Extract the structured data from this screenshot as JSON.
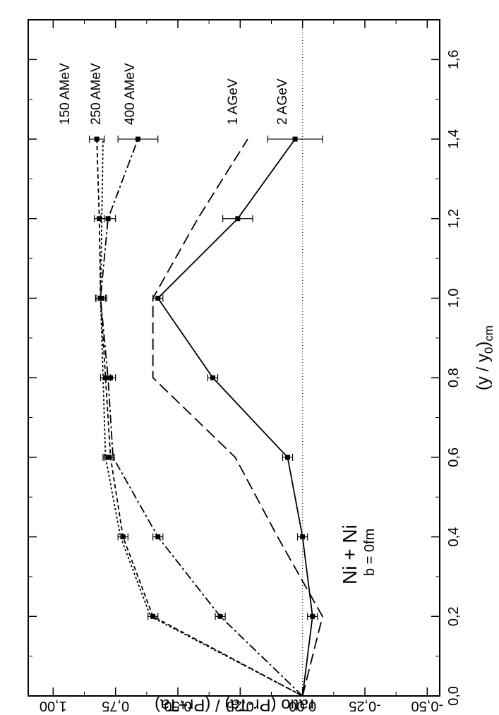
{
  "chart_data": {
    "type": "line",
    "xlabel": "(y / y",
    "xlabel_sub": "0",
    "xlabel_end": ")",
    "xlabel_sub2": "cm",
    "ylabel": "ratio   (Pr-Ta) / (Pr+Ta)",
    "xlim": [
      0.0,
      1.7
    ],
    "ylim": [
      -0.55,
      1.1
    ],
    "x_ticks": [
      {
        "value": 0.0,
        "label": "0,0"
      },
      {
        "value": 0.2,
        "label": "0,2"
      },
      {
        "value": 0.4,
        "label": "0,4"
      },
      {
        "value": 0.6,
        "label": "0,6"
      },
      {
        "value": 0.8,
        "label": "0,8"
      },
      {
        "value": 1.0,
        "label": "1,0"
      },
      {
        "value": 1.2,
        "label": "1,2"
      },
      {
        "value": 1.4,
        "label": "1,4"
      },
      {
        "value": 1.6,
        "label": "1,6"
      }
    ],
    "y_ticks": [
      {
        "value": 1.0,
        "label": "1,00"
      },
      {
        "value": 0.75,
        "label": "0,75"
      },
      {
        "value": 0.5,
        "label": "0,50"
      },
      {
        "value": 0.25,
        "label": "0,25"
      },
      {
        "value": 0.0,
        "label": "0,00"
      },
      {
        "value": -0.25,
        "label": "-0,25"
      },
      {
        "value": -0.5,
        "label": "-0,50"
      }
    ],
    "reference_line": 0.0,
    "annotation": {
      "main": "Ni + Ni",
      "sub": "b = 0fm"
    },
    "series": [
      {
        "name": "150 AMeV",
        "style": "short-dash",
        "line": [
          [
            0.0,
            0.0
          ],
          [
            0.2,
            0.6
          ],
          [
            0.4,
            0.72
          ],
          [
            0.6,
            0.77
          ],
          [
            0.8,
            0.79
          ],
          [
            1.0,
            0.81
          ],
          [
            1.2,
            0.815
          ],
          [
            1.4,
            0.825
          ]
        ],
        "points": [
          {
            "x": 0.2,
            "y": 0.6,
            "err": 0.02
          },
          {
            "x": 0.4,
            "y": 0.72,
            "err": 0.02
          },
          {
            "x": 0.6,
            "y": 0.775,
            "err": 0.02
          },
          {
            "x": 0.8,
            "y": 0.79,
            "err": 0.02
          },
          {
            "x": 1.0,
            "y": 0.81,
            "err": 0.02
          },
          {
            "x": 1.2,
            "y": 0.815,
            "err": 0.02
          },
          {
            "x": 1.4,
            "y": 0.825,
            "err": 0.03
          }
        ]
      },
      {
        "name": "250 AMeV",
        "style": "dotted",
        "line": [
          [
            0.0,
            0.0
          ],
          [
            0.2,
            0.61
          ],
          [
            0.4,
            0.73
          ],
          [
            0.6,
            0.79
          ],
          [
            0.8,
            0.8
          ],
          [
            1.0,
            0.81
          ],
          [
            1.2,
            0.805
          ],
          [
            1.4,
            0.8
          ]
        ],
        "points": [
          {
            "x": 0.6,
            "y": 0.78,
            "err": 0.02
          },
          {
            "x": 0.8,
            "y": 0.77,
            "err": 0.02
          },
          {
            "x": 1.0,
            "y": 0.805,
            "err": 0.02
          }
        ]
      },
      {
        "name": "400 AMeV",
        "style": "dash-dot",
        "line": [
          [
            0.0,
            0.0
          ],
          [
            0.2,
            0.33
          ],
          [
            0.4,
            0.58
          ],
          [
            0.6,
            0.76
          ],
          [
            0.8,
            0.78
          ],
          [
            1.0,
            0.81
          ],
          [
            1.2,
            0.78
          ],
          [
            1.4,
            0.66
          ]
        ],
        "points": [
          {
            "x": 0.2,
            "y": 0.33,
            "err": 0.02
          },
          {
            "x": 0.4,
            "y": 0.58,
            "err": 0.02
          },
          {
            "x": 1.2,
            "y": 0.78,
            "err": 0.03
          },
          {
            "x": 1.4,
            "y": 0.66,
            "err": 0.08
          }
        ]
      },
      {
        "name": "1 AGeV",
        "style": "long-dash",
        "line": [
          [
            0.0,
            0.0
          ],
          [
            0.2,
            -0.08
          ],
          [
            0.4,
            0.1
          ],
          [
            0.6,
            0.27
          ],
          [
            0.8,
            0.6
          ],
          [
            1.0,
            0.6
          ],
          [
            1.2,
            0.42
          ],
          [
            1.4,
            0.22
          ]
        ],
        "points": []
      },
      {
        "name": "2 AGeV",
        "style": "solid",
        "line": [
          [
            0.0,
            0.0
          ],
          [
            0.2,
            -0.04
          ],
          [
            0.4,
            0.0
          ],
          [
            0.6,
            0.06
          ],
          [
            0.8,
            0.36
          ],
          [
            1.0,
            0.58
          ],
          [
            1.2,
            0.26
          ],
          [
            1.4,
            0.03
          ]
        ],
        "points": [
          {
            "x": 0.2,
            "y": -0.04,
            "err": 0.02
          },
          {
            "x": 0.4,
            "y": 0.0,
            "err": 0.02
          },
          {
            "x": 0.6,
            "y": 0.06,
            "err": 0.02
          },
          {
            "x": 0.8,
            "y": 0.36,
            "err": 0.02
          },
          {
            "x": 1.0,
            "y": 0.58,
            "err": 0.02
          },
          {
            "x": 1.2,
            "y": 0.26,
            "err": 0.06
          },
          {
            "x": 1.4,
            "y": 0.03,
            "err": 0.11
          }
        ]
      }
    ]
  },
  "labels": {
    "s150": "150  AMeV",
    "s250": "250  AMeV",
    "s400": "400  AMeV",
    "s1g": "1  AGeV",
    "s2g": "2  AGeV"
  }
}
